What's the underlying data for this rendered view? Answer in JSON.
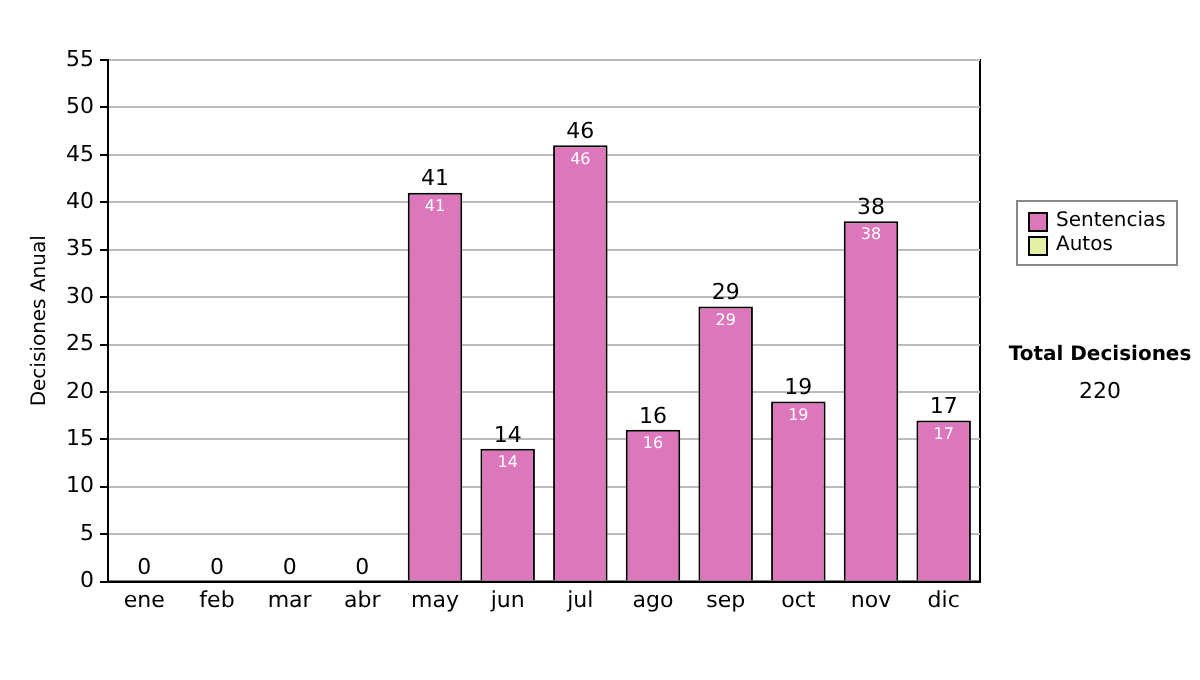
{
  "chart_data": {
    "type": "bar",
    "ylabel": "Decisiones Anual",
    "categories": [
      "ene",
      "feb",
      "mar",
      "abr",
      "may",
      "jun",
      "jul",
      "ago",
      "sep",
      "oct",
      "nov",
      "dic"
    ],
    "series": [
      {
        "name": "Sentencias",
        "color": "#dd77bb",
        "values": [
          0,
          0,
          0,
          0,
          41,
          14,
          46,
          16,
          29,
          19,
          38,
          17
        ],
        "value_labels": [
          null,
          null,
          null,
          null,
          "41",
          "14",
          "46",
          "16",
          "29",
          "19",
          "38",
          "17"
        ]
      },
      {
        "name": "Autos",
        "color": "#e4f0a4",
        "values": [
          0,
          0,
          0,
          0,
          0,
          0,
          0,
          0,
          0,
          0,
          0,
          0
        ]
      }
    ],
    "stacked": true,
    "totals": [
      "0",
      "0",
      "0",
      "0",
      "41",
      "14",
      "46",
      "16",
      "29",
      "19",
      "38",
      "17"
    ],
    "ylim": [
      0,
      55
    ],
    "yticks": [
      0,
      5,
      10,
      15,
      20,
      25,
      30,
      35,
      40,
      45,
      50,
      55
    ],
    "grid": "y",
    "legend": "right",
    "annotations": [
      "Total Decisiones",
      "220"
    ]
  }
}
